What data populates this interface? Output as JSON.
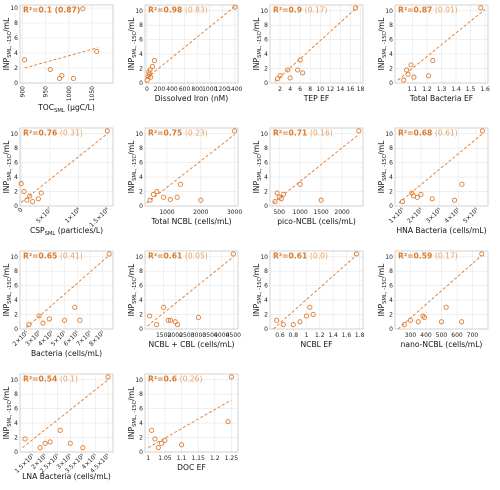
{
  "style": {
    "marker_color": "#e07b2e",
    "trend_color": "#e07b2e",
    "grid": true,
    "frame_color": "#c8c8c8",
    "r2_color": "#d97a2b",
    "paren_color": "#e8a060"
  },
  "chart_data": [
    {
      "type": "scatter",
      "xlabel": "TOC",
      "xlabel_sub": "SML",
      "xlabel_unit": " (µgC/L)",
      "ylabel": "INP",
      "ylabel_sub": "SML, -15C",
      "ylabel_unit": "/mL",
      "r2_main": "R²=0.1",
      "r2_paren": "(0.87)",
      "paren_bold": true,
      "xscale": "linear",
      "xlim": [
        895,
        1095
      ],
      "ylim": [
        0,
        10.4
      ],
      "xticks": [
        900,
        950,
        1000,
        1050
      ],
      "xtick_labels": [
        "900",
        "950",
        "1000",
        "1050"
      ],
      "xtick_rotate": 90,
      "yticks": [
        0,
        2,
        4,
        6,
        8,
        10
      ],
      "ytick_labels": [
        "0",
        "2",
        "4",
        "6",
        "8",
        "10"
      ],
      "x": [
        905,
        960,
        980,
        985,
        1010,
        1030,
        1060
      ],
      "y": [
        3.1,
        1.8,
        0.6,
        1.0,
        0.6,
        9.9,
        4.2
      ],
      "trend": [
        [
          905,
          2.0
        ],
        [
          1062,
          4.7
        ]
      ]
    },
    {
      "type": "scatter",
      "xlabel": "Dissolved Iron (nM)",
      "xlabel_sub": "",
      "xlabel_unit": "",
      "ylabel": "INP",
      "ylabel_sub": "SML, -15C",
      "ylabel_unit": "/mL",
      "r2_main": "R²=0.98",
      "r2_paren": "(0.83)",
      "paren_bold": false,
      "xscale": "linear",
      "xlim": [
        -30,
        1450
      ],
      "ylim": [
        0,
        10.8
      ],
      "xticks": [
        0,
        200,
        400,
        600,
        800,
        1000,
        1200,
        1400
      ],
      "xtick_labels": [
        "0",
        "200",
        "400",
        "600",
        "800",
        "1000",
        "1200",
        "1400"
      ],
      "xtick_rotate": 0,
      "yticks": [
        0,
        2,
        4,
        6,
        8,
        10
      ],
      "ytick_labels": [
        "0",
        "2",
        "4",
        "6",
        "8",
        "10"
      ],
      "x": [
        5,
        20,
        30,
        40,
        50,
        60,
        90,
        120,
        1400
      ],
      "y": [
        0.4,
        0.9,
        1.5,
        1.2,
        1.8,
        0.8,
        2.3,
        3.1,
        10.5
      ],
      "trend": [
        [
          0,
          0.7
        ],
        [
          1400,
          10.6
        ]
      ]
    },
    {
      "type": "scatter",
      "xlabel": "TEP EF",
      "xlabel_sub": "",
      "xlabel_unit": "",
      "ylabel": "INP",
      "ylabel_sub": "SML, -15C",
      "ylabel_unit": "/mL",
      "r2_main": "R²=0.9",
      "r2_paren": "(0.17)",
      "paren_bold": false,
      "xscale": "linear",
      "xlim": [
        0,
        18.5
      ],
      "ylim": [
        0,
        10.8
      ],
      "xticks": [
        2,
        4,
        6,
        8,
        10,
        12,
        14,
        16,
        18
      ],
      "xtick_labels": [
        "2",
        "4",
        "6",
        "8",
        "10",
        "12",
        "14",
        "16",
        "18"
      ],
      "xtick_rotate": 0,
      "yticks": [
        0,
        2,
        4,
        6,
        8,
        10
      ],
      "ytick_labels": [
        "0",
        "2",
        "4",
        "6",
        "8",
        "10"
      ],
      "x": [
        1.5,
        2.0,
        3.5,
        4.0,
        5.5,
        6.0,
        6.5,
        17.0
      ],
      "y": [
        0.6,
        1.0,
        1.8,
        0.7,
        1.8,
        3.2,
        1.4,
        10.4
      ],
      "trend": [
        [
          1.0,
          0.2
        ],
        [
          17.5,
          10.6
        ]
      ]
    },
    {
      "type": "scatter",
      "xlabel": "Total Bacteria EF",
      "xlabel_sub": "",
      "xlabel_unit": "",
      "ylabel": "INP",
      "ylabel_sub": "SML, -15C",
      "ylabel_unit": "/mL",
      "r2_main": "R²=0.87",
      "r2_paren": "(0.01)",
      "paren_bold": false,
      "xscale": "linear",
      "xlim": [
        0.98,
        1.62
      ],
      "ylim": [
        0,
        10.8
      ],
      "xticks": [
        1.1,
        1.2,
        1.3,
        1.4,
        1.5,
        1.6
      ],
      "xtick_labels": [
        "1.1",
        "1.2",
        "1.3",
        "1.4",
        "1.5",
        "1.6"
      ],
      "xtick_rotate": 0,
      "yticks": [
        0,
        2,
        4,
        6,
        8,
        10
      ],
      "ytick_labels": [
        "0",
        "2",
        "4",
        "6",
        "8",
        "10"
      ],
      "x": [
        1.04,
        1.06,
        1.07,
        1.09,
        1.11,
        1.21,
        1.24,
        1.57
      ],
      "y": [
        0.4,
        1.8,
        1.2,
        2.5,
        0.8,
        1.0,
        3.1,
        10.4
      ],
      "trend": [
        [
          1.0,
          0.4
        ],
        [
          1.6,
          10.2
        ]
      ]
    },
    {
      "type": "scatter",
      "xlabel": "CSP",
      "xlabel_sub": "SML",
      "xlabel_unit": " (particles/L)",
      "ylabel": "INP",
      "ylabel_sub": "SML, -15C",
      "ylabel_unit": "/mL",
      "r2_main": "R²=0.76",
      "r2_paren": "(0.31)",
      "paren_bold": false,
      "xscale": "linear",
      "xlim": [
        -2000000,
        160000000
      ],
      "ylim": [
        0,
        10.8
      ],
      "xticks": [
        0,
        50000000,
        100000000,
        150000000
      ],
      "xtick_labels": [
        "0",
        "5×10⁷",
        "1×10⁸",
        "1.5×10⁸"
      ],
      "xtick_rotate": -45,
      "yticks": [
        0,
        2,
        4,
        6,
        8,
        10
      ],
      "ytick_labels": [
        "0",
        "2",
        "4",
        "6",
        "8",
        "10"
      ],
      "x": [
        0,
        5000000,
        10000000,
        15000000,
        20000000,
        30000000,
        35000000,
        150000000
      ],
      "y": [
        3.1,
        2.0,
        0.8,
        1.4,
        0.6,
        1.0,
        1.8,
        10.4
      ],
      "trend": [
        [
          0,
          0.5
        ],
        [
          150000000,
          10.0
        ]
      ]
    },
    {
      "type": "scatter",
      "xlabel": "Total NCBL (cells/mL)",
      "xlabel_sub": "",
      "xlabel_unit": "",
      "ylabel": "INP",
      "ylabel_sub": "SML, -15C",
      "ylabel_unit": "/mL",
      "r2_main": "R²=0.75",
      "r2_paren": "(0.23)",
      "paren_bold": false,
      "xscale": "linear",
      "xlim": [
        350,
        3100
      ],
      "ylim": [
        0,
        10.8
      ],
      "xticks": [
        1000,
        2000,
        3000
      ],
      "xtick_labels": [
        "1000",
        "2000",
        "3000"
      ],
      "xtick_rotate": 0,
      "yticks": [
        0,
        2,
        4,
        6,
        8,
        10
      ],
      "ytick_labels": [
        "0",
        "2",
        "4",
        "6",
        "8",
        "10"
      ],
      "x": [
        500,
        600,
        700,
        900,
        1100,
        1300,
        1400,
        2000,
        3000
      ],
      "y": [
        0.8,
        1.6,
        2.0,
        1.2,
        0.9,
        1.2,
        3.0,
        0.8,
        10.4
      ],
      "trend": [
        [
          400,
          0.4
        ],
        [
          3000,
          9.9
        ]
      ]
    },
    {
      "type": "scatter",
      "xlabel": "pico-NCBL (cells/mL)",
      "xlabel_sub": "",
      "xlabel_unit": "",
      "ylabel": "INP",
      "ylabel_sub": "SML, -15C",
      "ylabel_unit": "/mL",
      "r2_main": "R²=0.71",
      "r2_paren": "(0.16)",
      "paren_bold": false,
      "xscale": "linear",
      "xlim": [
        280,
        2500
      ],
      "ylim": [
        0,
        10.8
      ],
      "xticks": [
        500,
        1000,
        1500,
        2000
      ],
      "xtick_labels": [
        "500",
        "1000",
        "1500",
        "2000"
      ],
      "xtick_rotate": 0,
      "yticks": [
        0,
        2,
        4,
        6,
        8,
        10
      ],
      "ytick_labels": [
        "0",
        "2",
        "4",
        "6",
        "8",
        "10"
      ],
      "x": [
        400,
        450,
        500,
        550,
        600,
        1000,
        1500,
        2400
      ],
      "y": [
        0.6,
        1.8,
        1.2,
        1.0,
        1.6,
        3.0,
        0.8,
        10.4
      ],
      "trend": [
        [
          350,
          0.4
        ],
        [
          2400,
          9.9
        ]
      ]
    },
    {
      "type": "scatter",
      "xlabel": "HNA Bacteria (cells/mL)",
      "xlabel_sub": "",
      "xlabel_unit": "",
      "ylabel": "INP",
      "ylabel_sub": "SML, -15C",
      "ylabel_unit": "/mL",
      "r2_main": "R²=0.68",
      "r2_paren": "(0.61)",
      "paren_bold": false,
      "xscale": "linear",
      "xlim": [
        60000,
        560000
      ],
      "ylim": [
        0,
        10.8
      ],
      "xticks": [
        100000,
        200000,
        300000,
        400000,
        500000
      ],
      "xtick_labels": [
        "1×10⁵",
        "2×10⁵",
        "3×10⁵",
        "4×10⁵",
        "5×10⁵"
      ],
      "xtick_rotate": -45,
      "yticks": [
        0,
        2,
        4,
        6,
        8,
        10
      ],
      "ytick_labels": [
        "0",
        "2",
        "4",
        "6",
        "8",
        "10"
      ],
      "x": [
        100000,
        150000,
        160000,
        180000,
        200000,
        260000,
        380000,
        420000,
        530000
      ],
      "y": [
        0.6,
        1.8,
        1.4,
        1.2,
        1.6,
        1.0,
        0.8,
        3.0,
        10.4
      ],
      "trend": [
        [
          80000,
          0.4
        ],
        [
          530000,
          10.0
        ]
      ]
    },
    {
      "type": "scatter",
      "xlabel": "Bacteria (cells/mL)",
      "xlabel_sub": "",
      "xlabel_unit": "",
      "ylabel": "INP",
      "ylabel_sub": "SML, -15C",
      "ylabel_unit": "/mL",
      "r2_main": "R²=0.65",
      "r2_paren": "(0.41)",
      "paren_bold": false,
      "xscale": "linear",
      "xlim": [
        150000,
        880000
      ],
      "ylim": [
        0,
        10.8
      ],
      "xticks": [
        200000,
        300000,
        400000,
        500000,
        600000,
        700000,
        800000
      ],
      "xtick_labels": [
        "2×10⁵",
        "3×10⁵",
        "4×10⁵",
        "5×10⁵",
        "6×10⁵",
        "7×10⁵",
        "8×10⁵"
      ],
      "xtick_rotate": -45,
      "yticks": [
        0,
        2,
        4,
        6,
        8,
        10
      ],
      "ytick_labels": [
        "0",
        "2",
        "4",
        "6",
        "8",
        "10"
      ],
      "x": [
        220000,
        300000,
        330000,
        380000,
        500000,
        580000,
        620000,
        850000
      ],
      "y": [
        0.6,
        1.8,
        0.8,
        1.4,
        1.2,
        3.0,
        1.2,
        10.4
      ],
      "trend": [
        [
          200000,
          0.2
        ],
        [
          850000,
          10.2
        ]
      ]
    },
    {
      "type": "scatter",
      "xlabel": "NCBL + CBL (cells/mL)",
      "xlabel_sub": "",
      "xlabel_unit": "",
      "ylabel": "INP",
      "ylabel_sub": "SML, -15C",
      "ylabel_unit": "/mL",
      "r2_main": "R²=0.61",
      "r2_paren": "(0.05)",
      "paren_bold": false,
      "xscale": "linear",
      "xlim": [
        700,
        4700
      ],
      "ylim": [
        0,
        10.8
      ],
      "xticks": [
        1500,
        2000,
        2500,
        3000,
        3500,
        4000,
        4500
      ],
      "xtick_labels": [
        "1500",
        "2000",
        "2500",
        "3000",
        "3500",
        "4000",
        "4500"
      ],
      "xtick_rotate": 0,
      "yticks": [
        0,
        2,
        4,
        6,
        8,
        10
      ],
      "ytick_labels": [
        "0",
        "2",
        "4",
        "6",
        "8",
        "10"
      ],
      "x": [
        900,
        1200,
        1500,
        1700,
        1800,
        2000,
        2100,
        3000,
        4500
      ],
      "y": [
        1.8,
        0.6,
        3.0,
        1.2,
        1.2,
        1.0,
        0.6,
        1.6,
        10.4
      ],
      "trend": [
        [
          800,
          0.4
        ],
        [
          4500,
          10.0
        ]
      ]
    },
    {
      "type": "scatter",
      "xlabel": "NCBL EF",
      "xlabel_sub": "",
      "xlabel_unit": "",
      "ylabel": "INP",
      "ylabel_sub": "SML, -15C",
      "ylabel_unit": "/mL",
      "r2_main": "R²=0.61",
      "r2_paren": "(0.0)",
      "paren_bold": false,
      "xscale": "linear",
      "xlim": [
        0.45,
        1.85
      ],
      "ylim": [
        0,
        10.8
      ],
      "xticks": [
        0.6,
        0.8,
        1.0,
        1.2,
        1.4,
        1.6,
        1.8
      ],
      "xtick_labels": [
        "0.6",
        "0.8",
        "1",
        "1.2",
        "1.4",
        "1.6",
        "1.8"
      ],
      "xtick_rotate": 0,
      "yticks": [
        0,
        2,
        4,
        6,
        8,
        10
      ],
      "ytick_labels": [
        "0",
        "2",
        "4",
        "6",
        "8",
        "10"
      ],
      "x": [
        0.55,
        0.65,
        0.8,
        0.9,
        1.0,
        1.05,
        1.1,
        1.75
      ],
      "y": [
        1.2,
        0.6,
        0.6,
        1.0,
        1.8,
        3.0,
        2.0,
        10.4
      ],
      "trend": [
        [
          0.5,
          0.0
        ],
        [
          1.75,
          10.2
        ]
      ]
    },
    {
      "type": "scatter",
      "xlabel": "nano-NCBL (cells/mL)",
      "xlabel_sub": "",
      "xlabel_unit": "",
      "ylabel": "INP",
      "ylabel_sub": "SML, -15C",
      "ylabel_unit": "/mL",
      "r2_main": "R²=0.59",
      "r2_paren": "(0.17)",
      "paren_bold": false,
      "xscale": "linear",
      "xlim": [
        200,
        800
      ],
      "ylim": [
        0,
        10.8
      ],
      "xticks": [
        300,
        400,
        500,
        600,
        700
      ],
      "xtick_labels": [
        "300",
        "400",
        "500",
        "600",
        "700"
      ],
      "xtick_rotate": 0,
      "yticks": [
        0,
        2,
        4,
        6,
        8,
        10
      ],
      "ytick_labels": [
        "0",
        "2",
        "4",
        "6",
        "8",
        "10"
      ],
      "x": [
        260,
        300,
        350,
        380,
        390,
        500,
        530,
        630,
        760
      ],
      "y": [
        0.6,
        1.2,
        1.0,
        1.8,
        1.6,
        1.0,
        3.0,
        1.0,
        10.4
      ],
      "trend": [
        [
          220,
          0.0
        ],
        [
          760,
          10.2
        ]
      ]
    },
    {
      "type": "scatter",
      "xlabel": "LNA Bacteria (cells/mL)",
      "xlabel_sub": "",
      "xlabel_unit": "",
      "ylabel": "INP",
      "ylabel_sub": "SML, -15C",
      "ylabel_unit": "/mL",
      "r2_main": "R²=0.54",
      "r2_paren": "(0.1)",
      "paren_bold": false,
      "xscale": "linear",
      "xlim": [
        100000,
        470000
      ],
      "ylim": [
        0,
        10.8
      ],
      "xticks": [
        150000,
        200000,
        250000,
        300000,
        350000,
        400000,
        450000
      ],
      "xtick_labels": [
        "1.5×10⁵",
        "2×10⁵",
        "2.5×10⁵",
        "3×10⁵",
        "3.5×10⁵",
        "4×10⁵",
        "4.5×10⁵"
      ],
      "xtick_rotate": -45,
      "yticks": [
        0,
        2,
        4,
        6,
        8,
        10
      ],
      "ytick_labels": [
        "0",
        "2",
        "4",
        "6",
        "8",
        "10"
      ],
      "x": [
        120000,
        180000,
        200000,
        220000,
        260000,
        300000,
        350000,
        450000
      ],
      "y": [
        1.8,
        0.6,
        1.2,
        1.4,
        3.0,
        1.2,
        0.6,
        10.4
      ],
      "trend": [
        [
          110000,
          0.6
        ],
        [
          450000,
          10.0
        ]
      ]
    },
    {
      "type": "scatter",
      "xlabel": "DOC EF",
      "xlabel_sub": "",
      "xlabel_unit": "",
      "ylabel": "INP",
      "ylabel_sub": "SML, -15C",
      "ylabel_unit": "/mL",
      "r2_main": "R²=0.6",
      "r2_paren": "(0.26)",
      "paren_bold": false,
      "xscale": "linear",
      "xlim": [
        0.99,
        1.27
      ],
      "ylim": [
        0,
        10.8
      ],
      "xticks": [
        1.0,
        1.05,
        1.1,
        1.15,
        1.2,
        1.25
      ],
      "xtick_labels": [
        "1",
        "1.05",
        "1.1",
        "1.15",
        "1.2",
        "1.25"
      ],
      "xtick_rotate": 0,
      "yticks": [
        0,
        2,
        4,
        6,
        8,
        10
      ],
      "ytick_labels": [
        "0",
        "2",
        "4",
        "6",
        "8",
        "10"
      ],
      "x": [
        1.01,
        1.02,
        1.03,
        1.04,
        1.05,
        1.1,
        1.24,
        1.25
      ],
      "y": [
        3.0,
        1.8,
        0.6,
        1.2,
        1.6,
        1.0,
        4.2,
        10.4
      ],
      "trend": [
        [
          1.0,
          0.6
        ],
        [
          1.25,
          7.2
        ]
      ]
    }
  ]
}
